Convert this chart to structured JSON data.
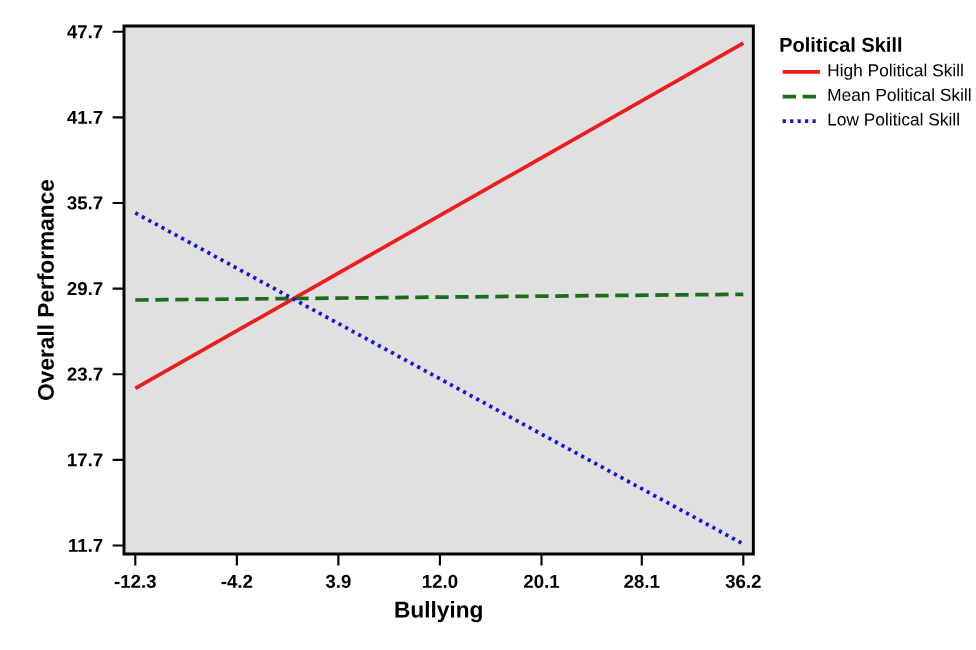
{
  "chart_data": {
    "type": "line",
    "xlabel": "Bullying",
    "ylabel": "Overall Performance",
    "legend_title": "Political Skill",
    "legend": "top right",
    "x": [
      -12.3,
      36.2
    ],
    "series": [
      {
        "name": "High Political Skill",
        "color": "#ee1c1c",
        "line_style": "solid",
        "values": [
          22.7,
          46.9
        ]
      },
      {
        "name": "Mean Political Skill",
        "color": "#1a6e1a",
        "line_style": "dashed",
        "values": [
          28.9,
          29.3
        ]
      },
      {
        "name": "Low Political Skill",
        "color": "#1414d8",
        "line_style": "dotted",
        "values": [
          35.0,
          11.8
        ]
      }
    ],
    "xlim": [
      -13.2,
      37.0
    ],
    "ylim": [
      11.1,
      48.1
    ],
    "xticks": [
      -12.3,
      -4.2,
      3.9,
      {
        "value": 12.0,
        "label": "12.0"
      },
      20.1,
      28.1,
      36.2
    ],
    "yticks": [
      11.7,
      17.7,
      23.7,
      29.7,
      35.7,
      41.7,
      47.7
    ],
    "grid": false,
    "marker": "none"
  }
}
